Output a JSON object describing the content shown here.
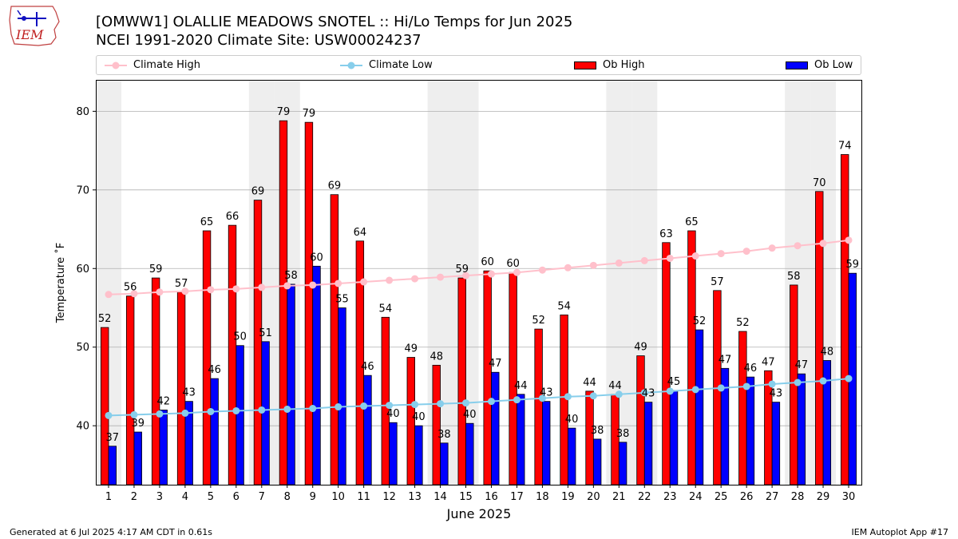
{
  "logo_text": "IEM",
  "title_line1": "[OMWW1] OLALLIE MEADOWS SNOTEL :: Hi/Lo Temps for Jun 2025",
  "title_line2": "NCEI 1991-2020 Climate Site: USW00024237",
  "footer_left": "Generated at 6 Jul 2025 4:17 AM CDT in 0.61s",
  "footer_right": "IEM Autoplot App #17",
  "colors": {
    "ob_high": "#ff0000",
    "ob_low": "#0000ff",
    "climate_high": "#ffc0cb",
    "climate_low": "#87ceeb",
    "weekend_shade": "#eeeeee",
    "grid": "#b0b0b0"
  },
  "chart_data": {
    "type": "bar",
    "xlabel": "June 2025",
    "ylabel": "Temperature ˚F",
    "ylim": [
      32.5,
      84
    ],
    "yticks": [
      40,
      50,
      60,
      70,
      80
    ],
    "grid": "horizontal",
    "legend_position": "top",
    "shaded_days": [
      1,
      7,
      8,
      14,
      15,
      21,
      22,
      28,
      29
    ],
    "categories": [
      "1",
      "2",
      "3",
      "4",
      "5",
      "6",
      "7",
      "8",
      "9",
      "10",
      "11",
      "12",
      "13",
      "14",
      "15",
      "16",
      "17",
      "18",
      "19",
      "20",
      "21",
      "22",
      "23",
      "24",
      "25",
      "26",
      "27",
      "28",
      "29",
      "30"
    ],
    "series": [
      {
        "name": "Climate High",
        "kind": "line",
        "values": [
          56.7,
          56.8,
          57.0,
          57.1,
          57.3,
          57.4,
          57.6,
          57.8,
          57.9,
          58.1,
          58.3,
          58.5,
          58.7,
          58.9,
          59.1,
          59.3,
          59.5,
          59.8,
          60.1,
          60.4,
          60.7,
          61.0,
          61.3,
          61.6,
          61.9,
          62.2,
          62.6,
          62.9,
          63.2,
          63.6
        ]
      },
      {
        "name": "Climate Low",
        "kind": "line",
        "values": [
          41.3,
          41.4,
          41.5,
          41.6,
          41.8,
          41.9,
          42.0,
          42.1,
          42.2,
          42.4,
          42.5,
          42.6,
          42.7,
          42.8,
          42.9,
          43.1,
          43.3,
          43.5,
          43.7,
          43.8,
          44.0,
          44.2,
          44.4,
          44.6,
          44.8,
          45.0,
          45.3,
          45.5,
          45.7,
          46.0
        ]
      },
      {
        "name": "Ob High",
        "kind": "bar",
        "values": [
          52.5,
          56.5,
          58.8,
          57.0,
          64.8,
          65.5,
          68.7,
          78.8,
          78.6,
          69.4,
          63.5,
          53.8,
          48.7,
          47.7,
          58.8,
          59.7,
          59.5,
          52.3,
          54.1,
          44.4,
          44.0,
          48.9,
          63.3,
          64.8,
          57.2,
          52.0,
          47.0,
          57.9,
          69.8,
          74.5
        ],
        "labels": [
          "52",
          "56",
          "59",
          "57",
          "65",
          "66",
          "69",
          "79",
          "79",
          "69",
          "64",
          "54",
          "49",
          "48",
          "59",
          "60",
          "60",
          "52",
          "54",
          "44",
          "44",
          "49",
          "63",
          "65",
          "57",
          "52",
          "47",
          "58",
          "70",
          "74"
        ]
      },
      {
        "name": "Ob Low",
        "kind": "bar",
        "values": [
          37.4,
          39.2,
          42.0,
          43.1,
          46.0,
          50.2,
          50.7,
          58.0,
          60.3,
          55.0,
          46.4,
          40.4,
          40.0,
          37.8,
          40.3,
          46.8,
          44.0,
          43.1,
          39.7,
          38.3,
          37.9,
          43.0,
          44.5,
          52.2,
          47.3,
          46.2,
          43.0,
          46.6,
          48.3,
          59.4
        ],
        "labels": [
          "37",
          "39",
          "42",
          "43",
          "46",
          "50",
          "51",
          "58",
          "60",
          "55",
          "46",
          "40",
          "40",
          "38",
          "40",
          "47",
          "44",
          "43",
          "40",
          "38",
          "38",
          "43",
          "45",
          "52",
          "47",
          "46",
          "43",
          "47",
          "48",
          "59"
        ]
      }
    ]
  }
}
